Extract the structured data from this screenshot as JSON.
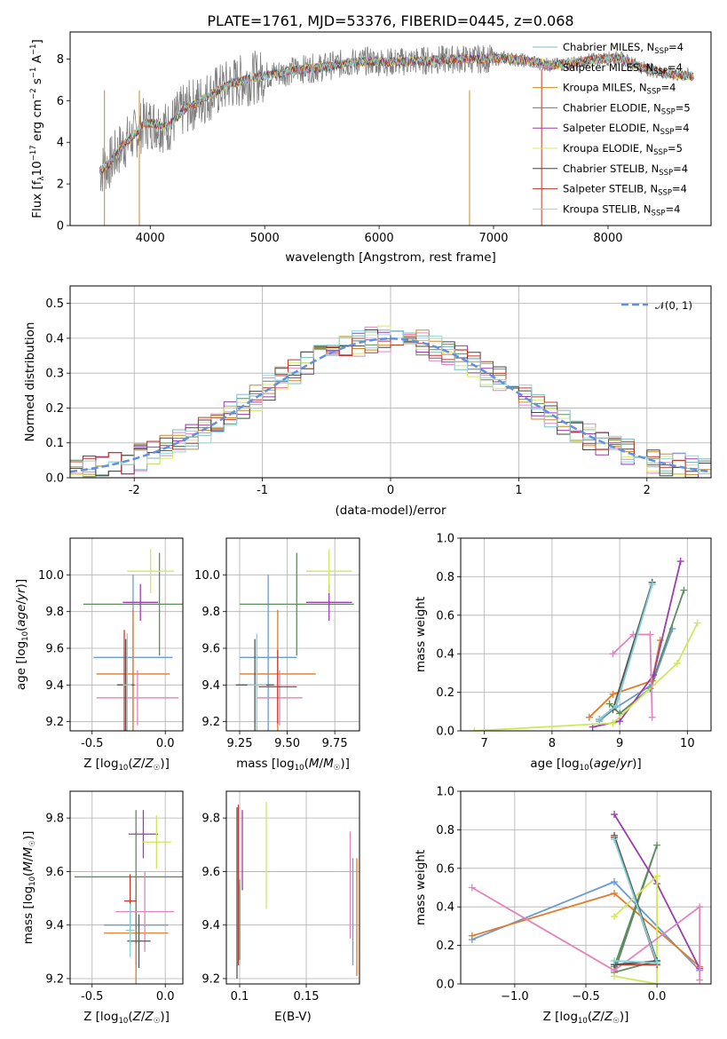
{
  "title": "PLATE=1761, MJD=53376, FIBERID=0445, z=0.068",
  "colors": {
    "c0": "#6a9bd1",
    "c1": "#e07b2a",
    "c2": "#5e8c5e",
    "c3": "#9b3cb0",
    "c4": "#cfe85a",
    "c5": "#e383bd",
    "c6": "#c0392b",
    "c7": "#555555",
    "c8": "#7ed3d9",
    "normal": "#6190e0",
    "data": "#808080"
  },
  "models": [
    {
      "name": "Chabrier MILES",
      "nssp": "4",
      "color": "#7fb8bd"
    },
    {
      "name": "Salpeter MILES",
      "nssp": "4",
      "color": "#e383bd"
    },
    {
      "name": "Kroupa MILES",
      "nssp": "4",
      "color": "#c98a2a"
    },
    {
      "name": "Chabrier ELODIE",
      "nssp": "5",
      "color": "#5e8c5e"
    },
    {
      "name": "Salpeter ELODIE",
      "nssp": "4",
      "color": "#9b3cb0"
    },
    {
      "name": "Kroupa ELODIE",
      "nssp": "5",
      "color": "#d9e866"
    },
    {
      "name": "Chabrier STELIB",
      "nssp": "4",
      "color": "#444444"
    },
    {
      "name": "Salpeter STELIB",
      "nssp": "4",
      "color": "#c0392b"
    },
    {
      "name": "Kroupa STELIB",
      "nssp": "4",
      "color": "#8fd6dc"
    }
  ],
  "chart_data": [
    {
      "id": "spectrum",
      "type": "line",
      "xlabel": "wavelength [Angstrom, rest frame]",
      "ylabel": "Flux [f_λ 10^-17 erg cm^-2 s^-1 A^-1]",
      "xlim": [
        3300,
        8900
      ],
      "ylim": [
        0,
        9.3
      ],
      "xticks": [
        4000,
        5000,
        6000,
        7000,
        8000
      ],
      "yticks": [
        0,
        2,
        4,
        6,
        8
      ],
      "legend_position": "top-right",
      "continuum": [
        [
          3550,
          2.6
        ],
        [
          3650,
          3.0
        ],
        [
          3750,
          3.8
        ],
        [
          3850,
          4.3
        ],
        [
          3950,
          4.9
        ],
        [
          4050,
          4.9
        ],
        [
          4150,
          4.7
        ],
        [
          4300,
          5.6
        ],
        [
          4500,
          6.2
        ],
        [
          4700,
          6.8
        ],
        [
          4900,
          7.1
        ],
        [
          5100,
          7.3
        ],
        [
          5300,
          7.5
        ],
        [
          5500,
          7.6
        ],
        [
          5700,
          7.8
        ],
        [
          5900,
          7.9
        ],
        [
          6100,
          7.85
        ],
        [
          6300,
          7.9
        ],
        [
          6500,
          7.95
        ],
        [
          6700,
          8.0
        ],
        [
          6900,
          8.0
        ],
        [
          7100,
          8.05
        ],
        [
          7300,
          7.9
        ],
        [
          7500,
          7.7
        ],
        [
          7700,
          7.8
        ],
        [
          7900,
          8.0
        ],
        [
          8100,
          8.05
        ],
        [
          8300,
          7.6
        ],
        [
          8500,
          7.3
        ],
        [
          8700,
          7.2
        ]
      ]
    },
    {
      "id": "residuals",
      "type": "bar",
      "xlabel": "(data-model)/error",
      "ylabel": "Normed distribution",
      "xlim": [
        -2.5,
        2.5
      ],
      "ylim": [
        0,
        0.55
      ],
      "xticks": [
        -2,
        -1,
        0,
        1,
        2
      ],
      "yticks": [
        0.0,
        0.1,
        0.2,
        0.3,
        0.4,
        0.5
      ],
      "legend": "𝒩(0, 1)",
      "legend_position": "top-right"
    },
    {
      "id": "age_vs_Z",
      "type": "scatter",
      "xlabel": "Z [log10(Z/Z☉)]",
      "ylabel": "age [log10(age/yr)]",
      "xlim": [
        -0.65,
        0.12
      ],
      "ylim": [
        9.15,
        10.2
      ],
      "xticks": [
        -0.5,
        0.0
      ],
      "yticks": [
        9.2,
        9.4,
        9.6,
        9.8,
        10.0
      ],
      "points": [
        {
          "x": -0.22,
          "y": 9.55,
          "xerr": 0.27,
          "yerr": 0.45,
          "c": "c0"
        },
        {
          "x": -0.22,
          "y": 9.46,
          "xerr": 0.25,
          "yerr": 0.35,
          "c": "c1"
        },
        {
          "x": -0.04,
          "y": 9.84,
          "xerr": 0.52,
          "yerr": 0.28,
          "c": "c2"
        },
        {
          "x": -0.17,
          "y": 9.85,
          "xerr": 0.12,
          "yerr": 0.1,
          "c": "c3"
        },
        {
          "x": -0.1,
          "y": 10.02,
          "xerr": 0.16,
          "yerr": 0.12,
          "c": "c4"
        },
        {
          "x": -0.19,
          "y": 9.33,
          "xerr": 0.28,
          "yerr": 0.15,
          "c": "c5"
        },
        {
          "x": -0.28,
          "y": 9.4,
          "xerr": 0.04,
          "yerr": 0.3,
          "c": "c6"
        },
        {
          "x": -0.27,
          "y": 9.4,
          "xerr": 0.06,
          "yerr": 0.25,
          "c": "c7"
        },
        {
          "x": -0.26,
          "y": 9.4,
          "xerr": 0.03,
          "yerr": 0.28,
          "c": "c8"
        }
      ]
    },
    {
      "id": "age_vs_mass",
      "type": "scatter",
      "xlabel": "mass [log10(M/M☉)]",
      "ylabel": "",
      "xlim": [
        9.18,
        9.88
      ],
      "ylim": [
        9.15,
        10.2
      ],
      "xticks": [
        9.25,
        9.5,
        9.75
      ],
      "yticks": [
        9.2,
        9.4,
        9.6,
        9.8,
        10.0
      ],
      "points": [
        {
          "x": 9.4,
          "y": 9.55,
          "xerr": 0.15,
          "yerr": 0.45,
          "c": "c0"
        },
        {
          "x": 9.45,
          "y": 9.46,
          "xerr": 0.2,
          "yerr": 0.35,
          "c": "c1"
        },
        {
          "x": 9.55,
          "y": 9.84,
          "xerr": 0.3,
          "yerr": 0.28,
          "c": "c2"
        },
        {
          "x": 9.72,
          "y": 9.85,
          "xerr": 0.12,
          "yerr": 0.1,
          "c": "c3"
        },
        {
          "x": 9.72,
          "y": 10.02,
          "xerr": 0.12,
          "yerr": 0.12,
          "c": "c4"
        },
        {
          "x": 9.46,
          "y": 9.33,
          "xerr": 0.12,
          "yerr": 0.15,
          "c": "c5"
        },
        {
          "x": 9.45,
          "y": 9.39,
          "xerr": 0.1,
          "yerr": 0.2,
          "c": "c6"
        },
        {
          "x": 9.33,
          "y": 9.4,
          "xerr": 0.1,
          "yerr": 0.25,
          "c": "c7"
        },
        {
          "x": 9.34,
          "y": 9.4,
          "xerr": 0.05,
          "yerr": 0.28,
          "c": "c8"
        }
      ]
    },
    {
      "id": "mass_weight_vs_age",
      "type": "line",
      "xlabel": "age [log10(age/yr)]",
      "ylabel": "mass weight",
      "xlim": [
        6.65,
        10.35
      ],
      "ylim": [
        0,
        1
      ],
      "xticks": [
        7,
        8,
        9,
        10
      ],
      "yticks": [
        0.0,
        0.2,
        0.4,
        0.6,
        0.8,
        1.0
      ],
      "series": [
        {
          "c": "c0",
          "pts": [
            [
              8.7,
              0.05
            ],
            [
              8.9,
              0.11
            ],
            [
              9.48,
              0.24
            ],
            [
              9.78,
              0.53
            ]
          ]
        },
        {
          "c": "c1",
          "pts": [
            [
              8.55,
              0.07
            ],
            [
              8.9,
              0.19
            ],
            [
              9.48,
              0.26
            ],
            [
              9.6,
              0.47
            ]
          ]
        },
        {
          "c": "c2",
          "pts": [
            [
              8.85,
              0.14
            ],
            [
              9.0,
              0.09
            ],
            [
              9.45,
              0.22
            ],
            [
              9.95,
              0.73
            ]
          ]
        },
        {
          "c": "c3",
          "pts": [
            [
              8.6,
              0.02
            ],
            [
              9.0,
              0.05
            ],
            [
              9.5,
              0.29
            ],
            [
              9.9,
              0.88
            ]
          ]
        },
        {
          "c": "c4",
          "pts": [
            [
              6.85,
              0.0
            ],
            [
              8.9,
              0.04
            ],
            [
              9.85,
              0.35
            ],
            [
              10.15,
              0.56
            ]
          ]
        },
        {
          "c": "c5",
          "pts": [
            [
              8.9,
              0.4
            ],
            [
              9.2,
              0.5
            ],
            [
              9.45,
              0.5
            ],
            [
              9.48,
              0.07
            ]
          ]
        },
        {
          "c": "c6",
          "pts": [
            [
              8.7,
              0.06
            ],
            [
              8.95,
              0.13
            ],
            [
              9.48,
              0.77
            ]
          ]
        },
        {
          "c": "c7",
          "pts": [
            [
              8.7,
              0.06
            ],
            [
              8.9,
              0.11
            ],
            [
              9.48,
              0.77
            ]
          ]
        },
        {
          "c": "c8",
          "pts": [
            [
              8.7,
              0.06
            ],
            [
              8.95,
              0.13
            ],
            [
              9.48,
              0.76
            ]
          ]
        }
      ]
    },
    {
      "id": "mass_vs_Z",
      "type": "scatter",
      "xlabel": "Z [log10(Z/Z☉)]",
      "ylabel": "mass [log10(M/M☉)]",
      "xlim": [
        -0.65,
        0.12
      ],
      "ylim": [
        9.18,
        9.9
      ],
      "xticks": [
        -0.5,
        0.0
      ],
      "yticks": [
        9.2,
        9.4,
        9.6,
        9.8
      ],
      "points": [
        {
          "x": -0.2,
          "y": 9.4,
          "xerr": 0.22,
          "yerr": 0.15,
          "c": "c0"
        },
        {
          "x": -0.2,
          "y": 9.37,
          "xerr": 0.22,
          "yerr": 0.2,
          "c": "c1"
        },
        {
          "x": -0.2,
          "y": 9.58,
          "xerr": 0.42,
          "yerr": 0.25,
          "c": "c2"
        },
        {
          "x": -0.15,
          "y": 9.74,
          "xerr": 0.1,
          "yerr": 0.09,
          "c": "c3"
        },
        {
          "x": -0.06,
          "y": 9.71,
          "xerr": 0.1,
          "yerr": 0.1,
          "c": "c4"
        },
        {
          "x": -0.14,
          "y": 9.45,
          "xerr": 0.2,
          "yerr": 0.15,
          "c": "c5"
        },
        {
          "x": -0.24,
          "y": 9.49,
          "xerr": 0.04,
          "yerr": 0.1,
          "c": "c6"
        },
        {
          "x": -0.18,
          "y": 9.34,
          "xerr": 0.08,
          "yerr": 0.1,
          "c": "c7"
        },
        {
          "x": -0.24,
          "y": 9.38,
          "xerr": 0.03,
          "yerr": 0.1,
          "c": "c8"
        }
      ]
    },
    {
      "id": "mass_vs_ebv",
      "type": "scatter",
      "xlabel": "E(B-V)",
      "ylabel": "",
      "xlim": [
        0.09,
        0.19
      ],
      "ylim": [
        9.18,
        9.9
      ],
      "xticks": [
        0.1,
        0.15
      ],
      "yticks": [
        9.2,
        9.4,
        9.6,
        9.8
      ],
      "points": [
        {
          "x": 0.098,
          "y": 9.52,
          "yerr": 0.32,
          "c": "c7"
        },
        {
          "x": 0.1,
          "y": 9.4,
          "yerr": 0.15,
          "c": "c8"
        },
        {
          "x": 0.1,
          "y": 9.42,
          "yerr": 0.15,
          "c": "c2"
        },
        {
          "x": 0.102,
          "y": 9.68,
          "yerr": 0.15,
          "c": "c3"
        },
        {
          "x": 0.12,
          "y": 9.66,
          "yerr": 0.2,
          "c": "c4"
        },
        {
          "x": 0.183,
          "y": 9.55,
          "yerr": 0.2,
          "c": "c5"
        },
        {
          "x": 0.185,
          "y": 9.45,
          "yerr": 0.2,
          "c": "c0"
        },
        {
          "x": 0.188,
          "y": 9.43,
          "yerr": 0.22,
          "c": "c1"
        },
        {
          "x": 0.099,
          "y": 9.55,
          "yerr": 0.3,
          "c": "c6"
        }
      ]
    },
    {
      "id": "mass_weight_vs_Z",
      "type": "line",
      "xlabel": "Z [log10(Z/Z☉)]",
      "ylabel": "mass weight",
      "xlim": [
        -1.38,
        0.38
      ],
      "ylim": [
        0,
        1
      ],
      "xticks": [
        -1.0,
        -0.5,
        0.0
      ],
      "yticks": [
        0.0,
        0.2,
        0.4,
        0.6,
        0.8,
        1.0
      ],
      "series": [
        {
          "c": "c0",
          "pts": [
            [
              -1.3,
              0.23
            ],
            [
              -0.3,
              0.53
            ],
            [
              0.3,
              0.07
            ]
          ]
        },
        {
          "c": "c1",
          "pts": [
            [
              -1.3,
              0.25
            ],
            [
              -0.3,
              0.47
            ],
            [
              0.3,
              0.09
            ]
          ]
        },
        {
          "c": "c2",
          "pts": [
            [
              -0.3,
              0.09
            ],
            [
              0.0,
              0.72
            ],
            [
              -0.3,
              0.06
            ],
            [
              0.0,
              0.12
            ]
          ]
        },
        {
          "c": "c3",
          "pts": [
            [
              -0.3,
              0.88
            ],
            [
              0.0,
              0.52
            ],
            [
              0.3,
              0.08
            ]
          ]
        },
        {
          "c": "c4",
          "pts": [
            [
              -0.3,
              0.35
            ],
            [
              0.0,
              0.56
            ],
            [
              0.0,
              0.0
            ],
            [
              -0.3,
              0.04
            ]
          ]
        },
        {
          "c": "c5",
          "pts": [
            [
              -1.3,
              0.5
            ],
            [
              -0.3,
              0.07
            ],
            [
              0.3,
              0.4
            ],
            [
              0.3,
              0.02
            ]
          ]
        },
        {
          "c": "c6",
          "pts": [
            [
              -0.3,
              0.1
            ],
            [
              0.0,
              0.1
            ],
            [
              -0.3,
              0.76
            ]
          ]
        },
        {
          "c": "c7",
          "pts": [
            [
              -0.3,
              0.1
            ],
            [
              0.0,
              0.12
            ],
            [
              -0.3,
              0.77
            ]
          ]
        },
        {
          "c": "c8",
          "pts": [
            [
              -0.3,
              0.12
            ],
            [
              0.0,
              0.11
            ],
            [
              -0.3,
              0.75
            ]
          ]
        }
      ]
    }
  ]
}
